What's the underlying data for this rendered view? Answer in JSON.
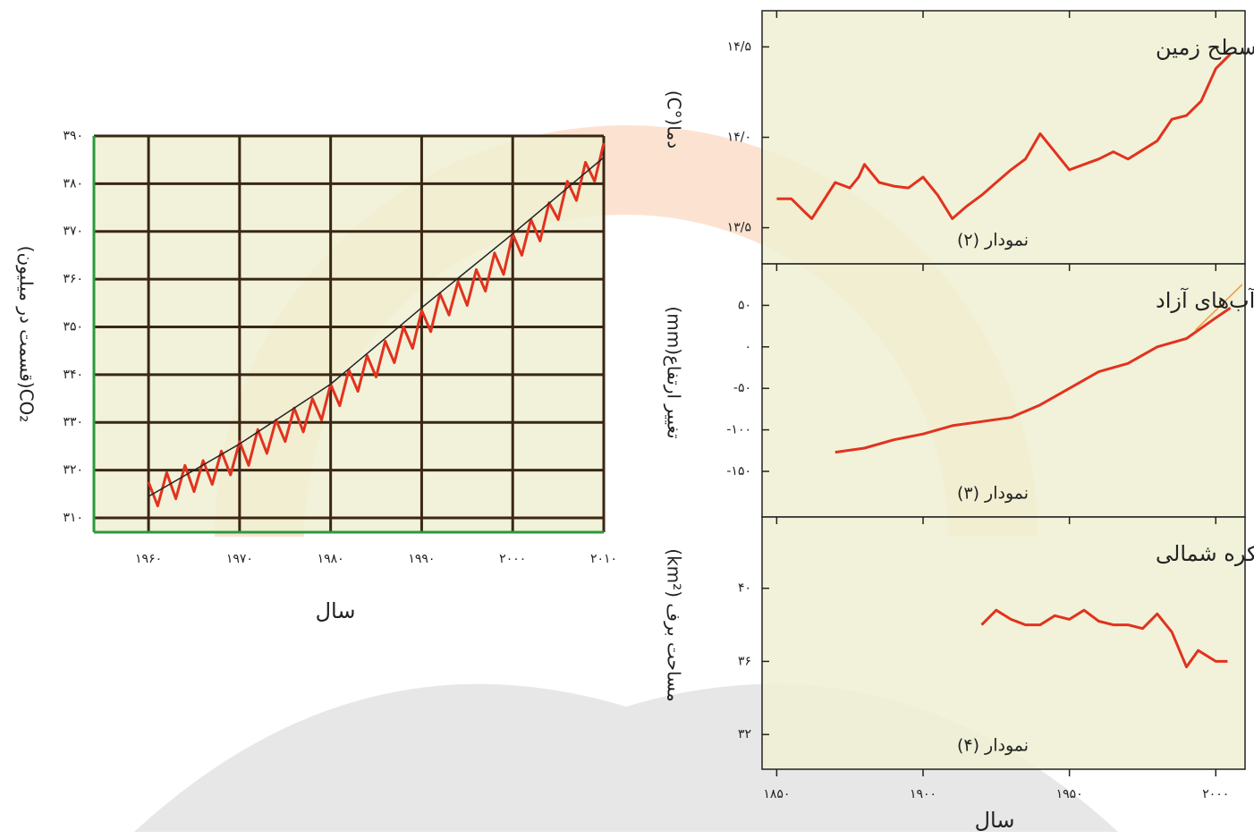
{
  "chart_data": [
    {
      "type": "line",
      "xlabel": "سال",
      "ylabel": "CO₂(قسمت در میلیون)",
      "xlim": [
        1954,
        2010
      ],
      "ylim": [
        307,
        390
      ],
      "grid": true,
      "xticks": [
        {
          "value": 1960,
          "label": "۱۹۶۰"
        },
        {
          "value": 1970,
          "label": "۱۹۷۰"
        },
        {
          "value": 1980,
          "label": "۱۹۸۰"
        },
        {
          "value": 1990,
          "label": "۱۹۹۰"
        },
        {
          "value": 2000,
          "label": "۲۰۰۰"
        },
        {
          "value": 2010,
          "label": "۲۰۱۰"
        }
      ],
      "yticks": [
        {
          "value": 310,
          "label": "۳۱۰"
        },
        {
          "value": 320,
          "label": "۳۲۰"
        },
        {
          "value": 330,
          "label": "۳۳۰"
        },
        {
          "value": 340,
          "label": "۳۴۰"
        },
        {
          "value": 350,
          "label": "۳۵۰"
        },
        {
          "value": 360,
          "label": "۳۶۰"
        },
        {
          "value": 370,
          "label": "۳۷۰"
        },
        {
          "value": 380,
          "label": "۳۸۰"
        },
        {
          "value": 390,
          "label": "۳۹۰"
        }
      ],
      "series": [
        {
          "color": "#e2321e",
          "x": [
            1960,
            1961,
            1962,
            1963,
            1964,
            1965,
            1966,
            1967,
            1968,
            1969,
            1970,
            1971,
            1972,
            1973,
            1974,
            1975,
            1976,
            1977,
            1978,
            1979,
            1980,
            1981,
            1982,
            1983,
            1984,
            1985,
            1986,
            1987,
            1988,
            1989,
            1990,
            1991,
            1992,
            1993,
            1994,
            1995,
            1996,
            1997,
            1998,
            1999,
            2000,
            2001,
            2002,
            2003,
            2004,
            2005,
            2006,
            2007,
            2008,
            2009,
            2010
          ],
          "values": [
            317.5,
            312.5,
            319.5,
            314,
            321,
            315.5,
            322,
            317,
            324,
            319,
            326,
            321,
            328.5,
            323.5,
            330.5,
            326,
            333,
            328,
            335,
            330.5,
            338,
            333.5,
            341,
            336.5,
            344,
            339.5,
            347,
            342.5,
            350,
            345.5,
            353.5,
            349,
            357,
            352.5,
            359.5,
            354.5,
            362,
            357.5,
            365.5,
            361,
            369.5,
            365,
            372.5,
            368,
            376,
            372.5,
            380.5,
            376.5,
            384.5,
            380.5,
            388.5
          ]
        },
        {
          "color": "#222222",
          "x": [
            1960,
            1970,
            1980,
            1990,
            2000,
            2010
          ],
          "values": [
            314.5,
            325.5,
            338,
            354,
            369.5,
            385.5
          ]
        }
      ]
    },
    {
      "type": "line",
      "title": "میانگین جهانی دمای سطح زمین",
      "annotation": "نمودار (۲)",
      "ylabel": "دما(°C)",
      "xlim": [
        1845,
        2010
      ],
      "ylim": [
        13.3,
        14.7
      ],
      "yticks": [
        {
          "value": 13.5,
          "label": "۱۳/۵"
        },
        {
          "value": 14.0,
          "label": "۱۴/۰"
        },
        {
          "value": 14.5,
          "label": "۱۴/۵"
        }
      ],
      "series": [
        {
          "color": "#e2321e",
          "x": [
            1850,
            1855,
            1860,
            1862,
            1870,
            1875,
            1878,
            1880,
            1885,
            1890,
            1895,
            1900,
            1905,
            1910,
            1915,
            1920,
            1925,
            1930,
            1935,
            1940,
            1945,
            1950,
            1955,
            1960,
            1965,
            1970,
            1975,
            1980,
            1985,
            1990,
            1995,
            2000,
            2005
          ],
          "values": [
            13.66,
            13.66,
            13.58,
            13.55,
            13.75,
            13.72,
            13.78,
            13.85,
            13.75,
            13.73,
            13.72,
            13.78,
            13.68,
            13.55,
            13.62,
            13.68,
            13.75,
            13.82,
            13.88,
            14.02,
            13.92,
            13.82,
            13.85,
            13.88,
            13.92,
            13.88,
            13.93,
            13.98,
            14.1,
            14.12,
            14.2,
            14.38,
            14.46
          ]
        }
      ]
    },
    {
      "type": "line",
      "title": "میانگین جهانی سطح آب‌های آزاد",
      "annotation": "نمودار (۳)",
      "ylabel": "تغییر ارتفاع(mm)",
      "xlim": [
        1845,
        2010
      ],
      "ylim": [
        -205,
        100
      ],
      "yticks": [
        {
          "value": -150,
          "label": "-۱۵۰"
        },
        {
          "value": -100,
          "label": "-۱۰۰"
        },
        {
          "value": -50,
          "label": "-۵۰"
        },
        {
          "value": 0,
          "label": "۰"
        },
        {
          "value": 50,
          "label": "۵۰"
        }
      ],
      "series": [
        {
          "color": "#e2321e",
          "x": [
            1870,
            1880,
            1890,
            1900,
            1910,
            1920,
            1930,
            1940,
            1950,
            1960,
            1970,
            1980,
            1990,
            2000,
            2005
          ],
          "values": [
            -127,
            -122,
            -112,
            -105,
            -95,
            -90,
            -85,
            -70,
            -50,
            -30,
            -20,
            0,
            10,
            35,
            47
          ]
        },
        {
          "color": "#f39a3c",
          "x": [
            1993,
            2009
          ],
          "values": [
            20,
            75
          ]
        }
      ]
    },
    {
      "type": "line",
      "title": "مساحت برف در نیمکره شمالی",
      "annotation": "نمودار (۴)",
      "ylabel": "مساحت برف (km²)",
      "xlabel": "سال",
      "xlim": [
        1845,
        2010
      ],
      "ylim": [
        30.1,
        43.9
      ],
      "xticks": [
        {
          "value": 1850,
          "label": "۱۸۵۰"
        },
        {
          "value": 1900,
          "label": "۱۹۰۰"
        },
        {
          "value": 1950,
          "label": "۱۹۵۰"
        },
        {
          "value": 2000,
          "label": "۲۰۰۰"
        }
      ],
      "yticks": [
        {
          "value": 32,
          "label": "۳۲"
        },
        {
          "value": 36,
          "label": "۳۶"
        },
        {
          "value": 40,
          "label": "۴۰"
        }
      ],
      "series": [
        {
          "color": "#e2321e",
          "x": [
            1920,
            1925,
            1930,
            1935,
            1940,
            1945,
            1950,
            1955,
            1960,
            1965,
            1970,
            1975,
            1980,
            1985,
            1990,
            1994,
            2000,
            2004
          ],
          "values": [
            38.0,
            38.8,
            38.3,
            38.0,
            38.0,
            38.5,
            38.3,
            38.8,
            38.2,
            38.0,
            38.0,
            37.8,
            38.6,
            37.6,
            35.7,
            36.6,
            36.0,
            36.0
          ]
        }
      ]
    }
  ]
}
